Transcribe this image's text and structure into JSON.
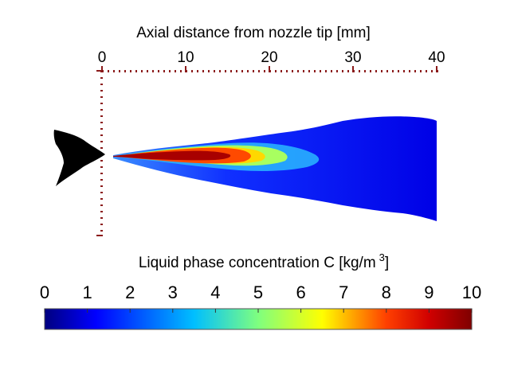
{
  "chart_data": {
    "type": "heatmap",
    "title": "",
    "x_axis": {
      "label": "Axial distance from nozzle tip [mm]",
      "ticks": [
        0,
        10,
        20,
        30,
        40
      ],
      "range": [
        0,
        40
      ],
      "position": "top",
      "style": "dotted"
    },
    "colorbar": {
      "label_main": "Liquid phase concentration C [kg/m",
      "label_sup": "3",
      "label_end": "]",
      "ticks": [
        0,
        1,
        2,
        3,
        4,
        5,
        6,
        7,
        8,
        9,
        10
      ],
      "range": [
        0,
        10
      ],
      "colormap": "jet",
      "orientation": "horizontal",
      "placement": "bottom"
    },
    "spray": {
      "description_units": "mm",
      "core_high_concentration_region_mm": [
        0.5,
        18
      ],
      "spray_extent_mm": [
        0.5,
        40
      ]
    },
    "colors": {
      "jet": [
        "#00007f",
        "#0000ff",
        "#007fff",
        "#00ffff",
        "#7fff7f",
        "#ffff00",
        "#ff7f00",
        "#ff0000",
        "#7f0000"
      ],
      "axis_dots": "#8b1a1a",
      "nozzle": "#000000"
    }
  }
}
